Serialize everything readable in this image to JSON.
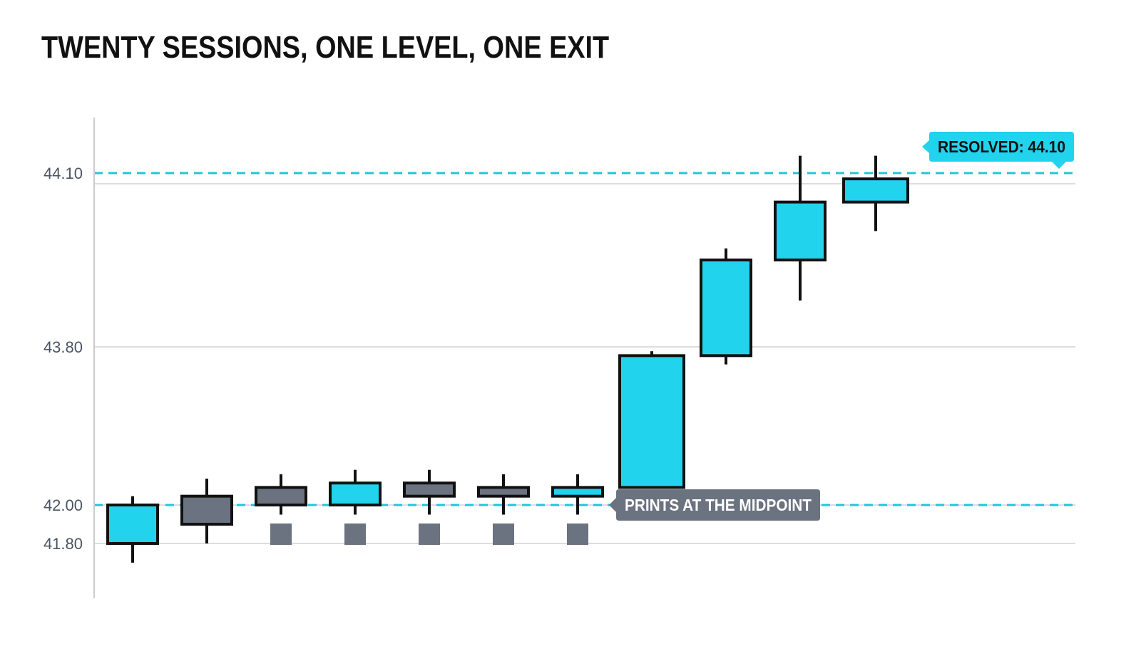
{
  "colors": {
    "bull": "#22d3ee",
    "bear": "#6b7280",
    "outline": "#111111",
    "level": "#22c5d6",
    "grid": "#dddddd",
    "axis": "#cccccc",
    "marker": "#6b7280",
    "callout_dark_bg": "#6b7280",
    "callout_dark_text": "#ffffff",
    "callout_bright_bg": "#22d3ee",
    "callout_bright_text": "#111111"
  },
  "chart_data": {
    "type": "candlestick",
    "title": "TWENTY SESSIONS, ONE LEVEL, ONE EXIT",
    "y_axis": {
      "ticks": [
        {
          "value": 41.8,
          "label": "41.80"
        },
        {
          "value": 42.0,
          "label": "42.00"
        },
        {
          "value": 43.8,
          "label": "43.80"
        },
        {
          "value": 44.1,
          "label": "44.10"
        }
      ],
      "grid": true
    },
    "candles": [
      {
        "open": 41.8,
        "high": 42.1,
        "low": 41.7,
        "close": 42.0,
        "direction": "up"
      },
      {
        "open": 42.1,
        "high": 42.3,
        "low": 41.8,
        "close": 41.9,
        "direction": "down"
      },
      {
        "open": 42.2,
        "high": 42.35,
        "low": 41.95,
        "close": 42.0,
        "direction": "down"
      },
      {
        "open": 42.0,
        "high": 42.4,
        "low": 41.95,
        "close": 42.25,
        "direction": "up"
      },
      {
        "open": 42.25,
        "high": 42.4,
        "low": 41.95,
        "close": 42.1,
        "direction": "down"
      },
      {
        "open": 42.2,
        "high": 42.35,
        "low": 41.95,
        "close": 42.1,
        "direction": "down"
      },
      {
        "open": 42.1,
        "high": 42.35,
        "low": 41.95,
        "close": 42.2,
        "direction": "up"
      },
      {
        "open": 42.2,
        "high": 43.75,
        "low": 42.2,
        "close": 43.7,
        "direction": "up"
      },
      {
        "open": 43.7,
        "high": 43.97,
        "low": 43.6,
        "close": 43.95,
        "direction": "up"
      },
      {
        "open": 43.95,
        "high": 44.13,
        "low": 43.88,
        "close": 44.05,
        "direction": "up"
      },
      {
        "open": 44.05,
        "high": 44.13,
        "low": 44.0,
        "close": 44.09,
        "direction": "up"
      }
    ],
    "midpoint_markers": [
      2,
      3,
      4,
      5,
      6
    ],
    "reference_levels": [
      {
        "value": 42.0,
        "style": "dashed",
        "label": "PRINTS AT THE MIDPOINT"
      },
      {
        "value": 44.1,
        "style": "dashed",
        "label": "RESOLVED: 44.10"
      }
    ]
  }
}
